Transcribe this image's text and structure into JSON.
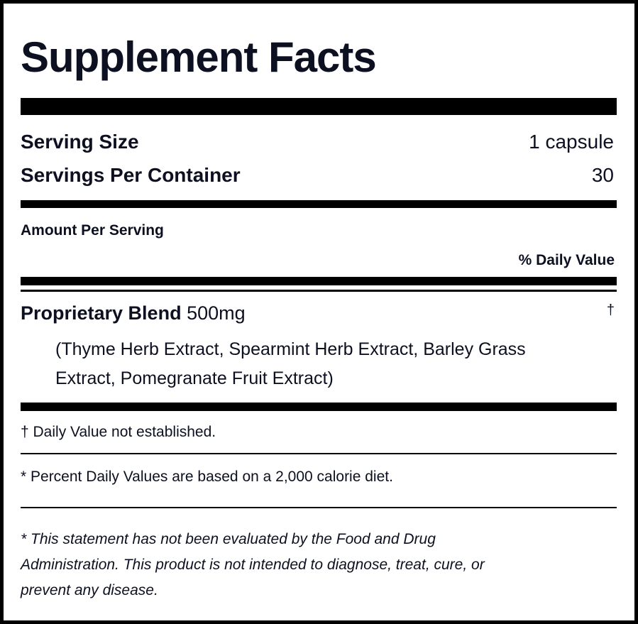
{
  "title": "Supplement Facts",
  "serving_size": {
    "label": "Serving Size",
    "value": "1 capsule"
  },
  "servings_per_container": {
    "label": "Servings Per Container",
    "value": "30"
  },
  "amount_per_serving": "Amount Per Serving",
  "daily_value_header": "% Daily Value",
  "ingredient": {
    "name": "Proprietary Blend",
    "amount": "500mg",
    "dv": "†",
    "components_line1": "(Thyme Herb Extract, Spearmint Herb Extract, Barley Grass",
    "components_line2": "Extract, Pomegranate Fruit Extract)"
  },
  "footnotes": {
    "dagger": "† Daily Value not established.",
    "percent": "* Percent Daily Values are based on a 2,000 calorie diet.",
    "fda_line1": "* This statement has not been evaluated by the Food and Drug",
    "fda_line2": "Administration. This product is not intended to diagnose, treat, cure, or",
    "fda_line3": "prevent any disease."
  }
}
